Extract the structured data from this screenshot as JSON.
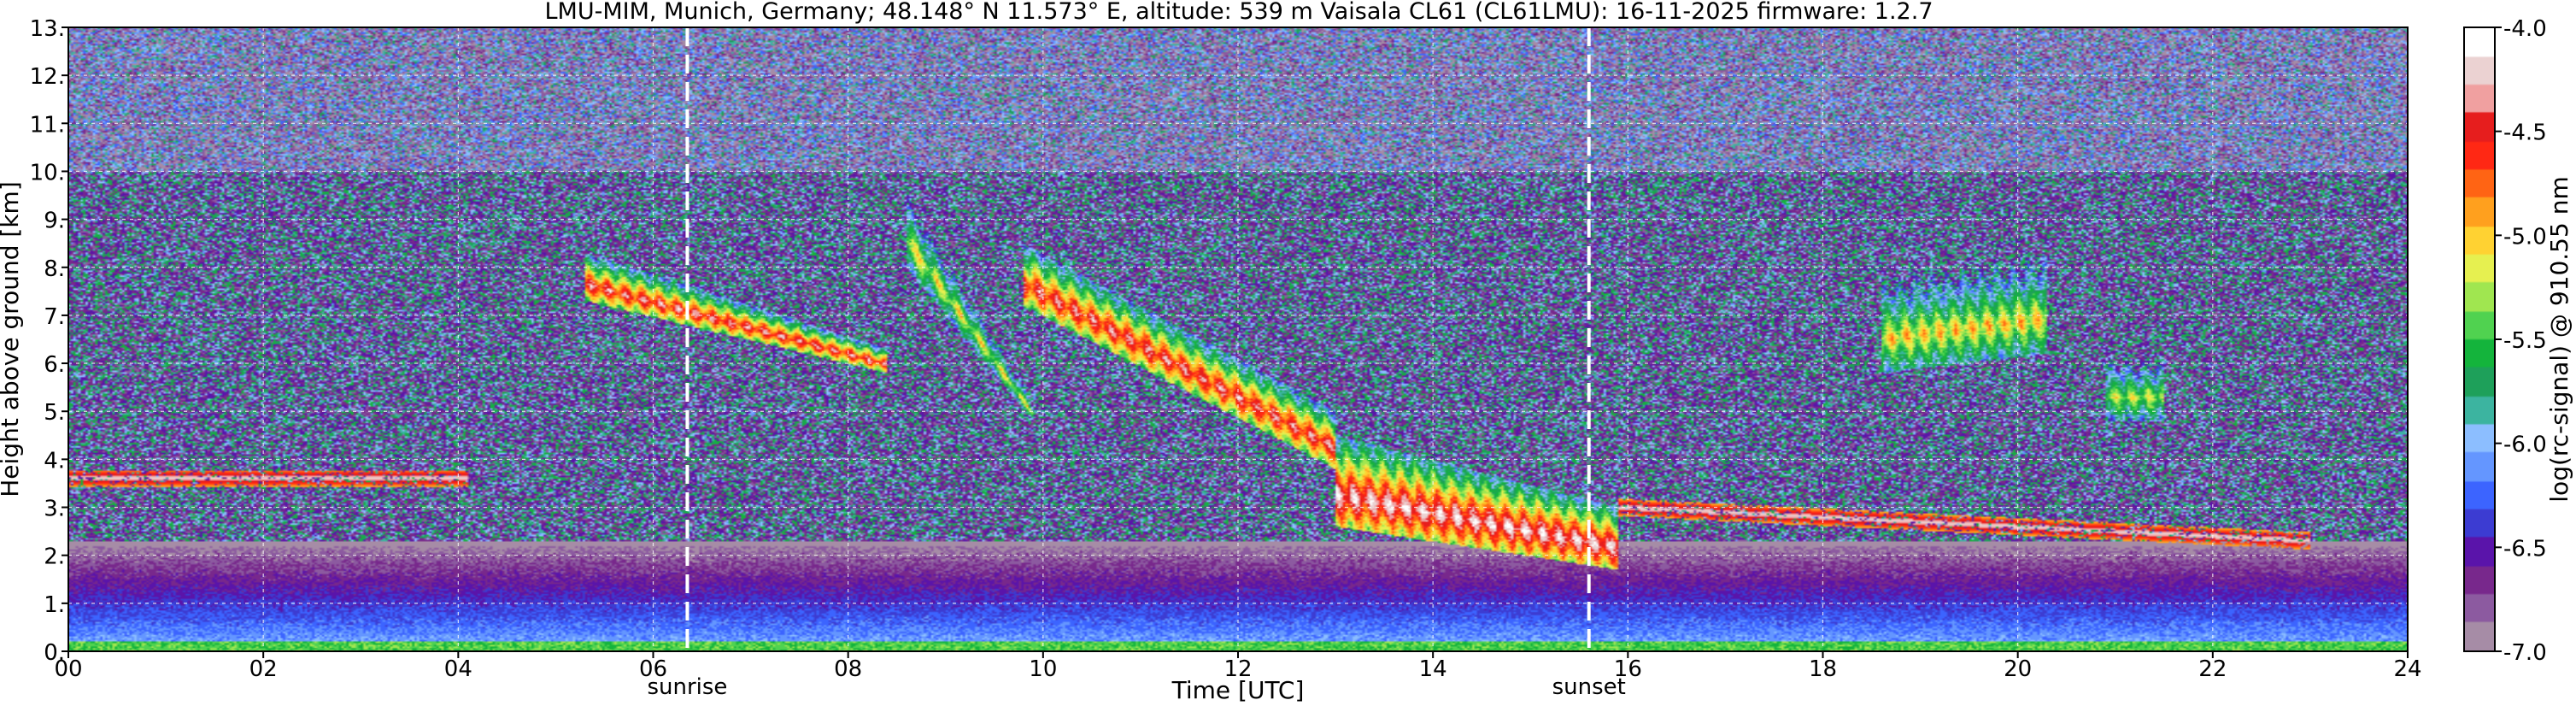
{
  "chart_data": {
    "type": "heatmap",
    "title": "LMU-MIM, Munich, Germany; 48.148° N 11.573° E, altitude: 539 m    Vaisala CL61 (CL61LMU): 16-11-2025    firmware: 1.2.7",
    "xlabel": "Time [UTC]",
    "ylabel": "Height above ground [km]",
    "colorbar_label": "log(rc-signal) @ 910.55 nm",
    "xlim": [
      0,
      24
    ],
    "ylim": [
      0,
      13
    ],
    "x_ticks": [
      0,
      2,
      4,
      6,
      8,
      10,
      12,
      14,
      16,
      18,
      20,
      22,
      24
    ],
    "x_tick_labels": [
      "00",
      "02",
      "04",
      "06",
      "08",
      "10",
      "12",
      "14",
      "16",
      "18",
      "20",
      "22",
      "24"
    ],
    "y_ticks": [
      0,
      1,
      2,
      3,
      4,
      5,
      6,
      7,
      8,
      9,
      10,
      11,
      12,
      13
    ],
    "y_tick_labels": [
      "0.",
      "1.",
      "2.",
      "3.",
      "4.",
      "5.",
      "6.",
      "7.",
      "8.",
      "9.",
      "10.",
      "11.",
      "12.",
      "13."
    ],
    "colorbar_range": [
      -7.0,
      -4.0
    ],
    "colorbar_ticks": [
      -4.0,
      -4.5,
      -5.0,
      -5.5,
      -6.0,
      -6.5,
      -7.0
    ],
    "colorbar_tick_labels": [
      "-4.0",
      "-4.5",
      "-5.0",
      "-5.5",
      "-6.0",
      "-6.5",
      "-7.0"
    ],
    "grid": true,
    "vertical_markers": [
      {
        "x": 6.35,
        "label": "sunrise"
      },
      {
        "x": 15.6,
        "label": "sunset"
      }
    ],
    "features": {
      "background_noise_level": -6.3,
      "cirrus_layers": [
        {
          "t_start": 5.3,
          "t_end": 8.4,
          "h_top_start": 8.3,
          "h_top_end": 6.3,
          "h_bot_start": 7.3,
          "h_bot_end": 5.8,
          "peak": -4.2
        },
        {
          "t_start": 8.6,
          "t_end": 9.9,
          "h_top_start": 9.6,
          "h_top_end": 5.2,
          "h_bot_start": 8.0,
          "h_bot_end": 4.8,
          "peak": -4.9
        },
        {
          "t_start": 9.8,
          "t_end": 13.0,
          "h_top_start": 8.5,
          "h_top_end": 5.0,
          "h_bot_start": 7.2,
          "h_bot_end": 3.8,
          "peak": -4.2
        },
        {
          "t_start": 13.0,
          "t_end": 15.9,
          "h_top_start": 4.5,
          "h_top_end": 3.0,
          "h_bot_start": 2.6,
          "h_bot_end": 1.7,
          "peak": -4.0
        },
        {
          "t_start": 18.6,
          "t_end": 20.3,
          "h_top_start": 7.8,
          "h_top_end": 8.3,
          "h_bot_start": 5.8,
          "h_bot_end": 6.2,
          "peak": -4.8
        },
        {
          "t_start": 20.9,
          "t_end": 21.5,
          "h_top_start": 6.2,
          "h_top_end": 6.2,
          "h_bot_start": 4.8,
          "h_bot_end": 4.8,
          "peak": -5.0
        }
      ],
      "thin_cloud_lines": [
        {
          "t_start": 0.0,
          "t_end": 4.1,
          "h": 3.6,
          "peak": -4.2
        },
        {
          "t_start": 15.9,
          "t_end": 23.0,
          "h_start": 3.0,
          "h_end": 2.3,
          "peak": -4.2
        }
      ],
      "boundary_layer_top_km": 2.0,
      "aerosol_layer_colour_range": [
        -6.9,
        -6.0
      ]
    }
  },
  "colors": {
    "colormap": [
      "#a68ca6",
      "#8c5aa0",
      "#78288c",
      "#5a14aa",
      "#3c3cd2",
      "#3c64ff",
      "#6496ff",
      "#8cbeff",
      "#3cb4a0",
      "#1ea05a",
      "#14b43c",
      "#50d250",
      "#a0e650",
      "#e6f050",
      "#ffd232",
      "#ffa01e",
      "#ff6414",
      "#ff2814",
      "#e61e1e",
      "#f0a0a0",
      "#ebd2d2",
      "#ffffff"
    ],
    "marker_line": "#ffffff",
    "grid_line": "#ffffff"
  }
}
